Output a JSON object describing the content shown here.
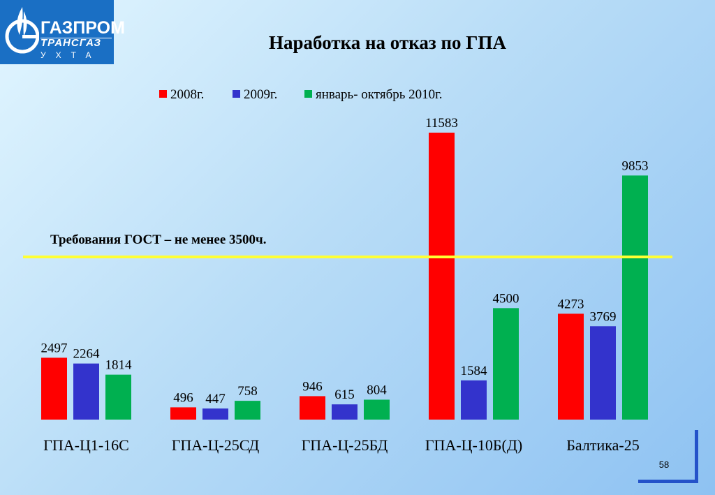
{
  "logo": {
    "brand": "ГАЗПРОМ",
    "subbrand": "ТРАНСГАЗ",
    "city": "УХТА"
  },
  "title": "Наработка на отказ по ГПА",
  "page_number": "58",
  "chart_data": {
    "type": "bar",
    "categories": [
      "ГПА-Ц1-16С",
      "ГПА-Ц-25СД",
      "ГПА-Ц-25БД",
      "ГПА-Ц-10Б(Д)",
      "Балтика-25"
    ],
    "series": [
      {
        "name": "2008г.",
        "color": "#ff0000",
        "values": [
          2497,
          496,
          946,
          11583,
          4273
        ]
      },
      {
        "name": "2009г.",
        "color": "#3333cc",
        "values": [
          2264,
          447,
          615,
          1584,
          3769
        ]
      },
      {
        "name": "январь- октябрь 2010г.",
        "color": "#00b050",
        "values": [
          1814,
          758,
          804,
          4500,
          9853
        ]
      }
    ],
    "value_labels": [
      [
        "2497",
        "496",
        "946",
        "11583",
        "4273"
      ],
      [
        "2264",
        "447",
        "615",
        "1584",
        "3769"
      ],
      [
        "1814",
        "758",
        "804",
        "4500",
        "9853"
      ]
    ],
    "reference_line": {
      "value": 3500,
      "label": "Требования ГОСТ – не менее 3500ч.",
      "color": "#ffff33"
    },
    "ylim": [
      0,
      11583
    ],
    "legend_position": "top",
    "grid": false,
    "title": "",
    "xlabel": "",
    "ylabel": ""
  }
}
